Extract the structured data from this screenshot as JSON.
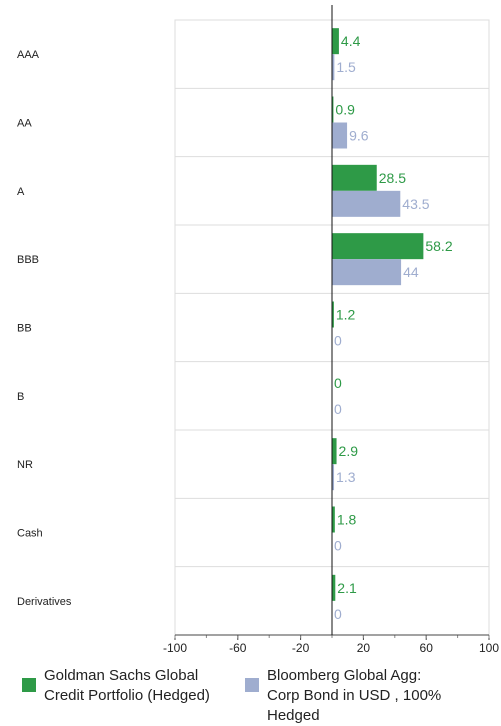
{
  "chart_data": {
    "type": "bar",
    "orientation": "horizontal",
    "categories": [
      "AAA",
      "AA",
      "A",
      "BBB",
      "BB",
      "B",
      "NR",
      "Cash",
      "Derivatives"
    ],
    "series": [
      {
        "name": "Goldman Sachs Global Credit Portfolio (Hedged)",
        "color": "#2e9a47",
        "values": [
          4.4,
          0.9,
          28.5,
          58.2,
          1.2,
          0,
          2.9,
          1.8,
          2.1
        ],
        "labels": [
          "4.4",
          "0.9",
          "28.5",
          "58.2",
          "1.2",
          "0",
          "2.9",
          "1.8",
          "2.1"
        ]
      },
      {
        "name": "Bloomberg Global Agg: Corp Bond in USD , 100% Hedged",
        "color": "#9fadcf",
        "values": [
          1.5,
          9.6,
          43.5,
          44,
          0,
          0,
          1.3,
          0,
          0
        ],
        "labels": [
          "1.5",
          "9.6",
          "43.5",
          "44",
          "0",
          "0",
          "1.3",
          "0",
          "0"
        ]
      }
    ],
    "xlim": [
      -100,
      100
    ],
    "xticks": [
      -100,
      -60,
      -20,
      20,
      60,
      100
    ],
    "xtick_labels": [
      "-100",
      "-60",
      "-20",
      "20",
      "60",
      "100"
    ],
    "grid": true,
    "legend_position": "bottom"
  },
  "legend": {
    "series_1": "Goldman Sachs Global Credit Portfolio (Hedged)",
    "series_2": "Bloomberg Global Agg: Corp Bond in USD , 100% Hedged"
  }
}
